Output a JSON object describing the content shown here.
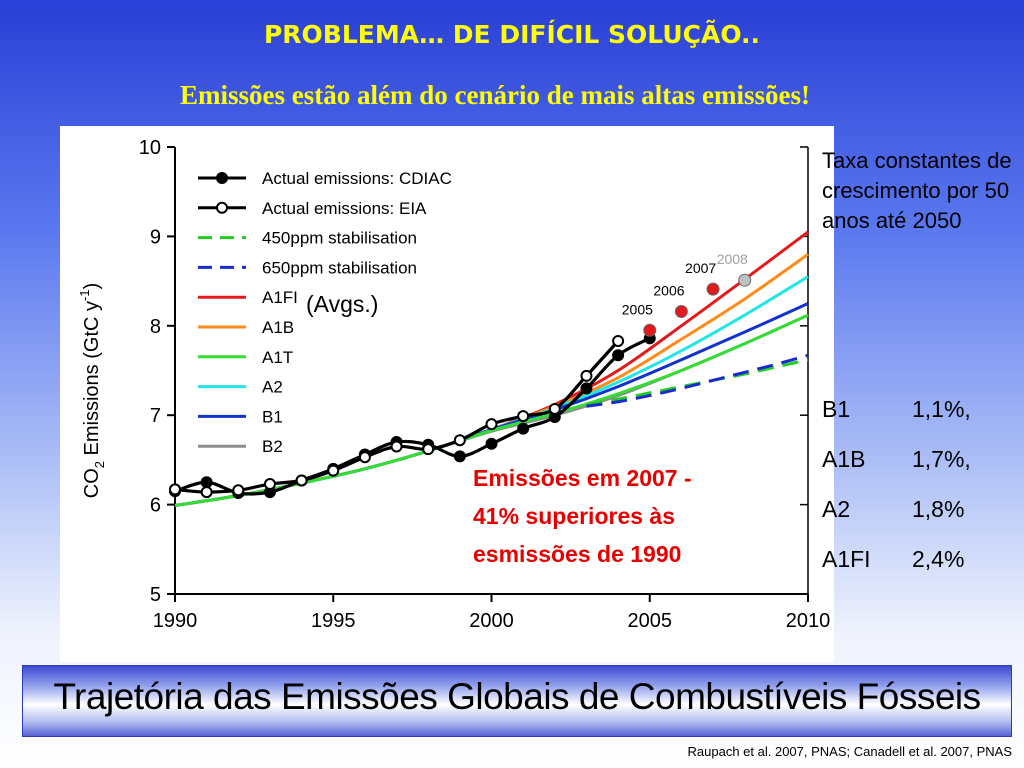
{
  "slide": {
    "title": "PROBLEMA… DE DIFÍCIL SOLUÇÃO..",
    "subtitle": "Emissões estão além do cenário de mais altas emissões!",
    "side_note": "Taxa constantes de crescimento por 50 anos até 2050",
    "rates": [
      {
        "name": "B1",
        "value": "1,1%,"
      },
      {
        "name": "A1B",
        "value": "1,7%,"
      },
      {
        "name": "A2",
        "value": "1,8%"
      },
      {
        "name": "A1FI",
        "value": "2,4%"
      }
    ],
    "banner": "Trajetória das Emissões Globais de Combustíveis Fósseis",
    "source": "Raupach et al. 2007, PNAS; Canadell et al. 2007, PNAS"
  },
  "chart_data": {
    "type": "line",
    "xlim": [
      1990,
      2010
    ],
    "ylim": [
      5,
      10
    ],
    "x_ticks": [
      "1990",
      "1995",
      "2000",
      "2005",
      "2010"
    ],
    "y_ticks": [
      "5",
      "6",
      "7",
      "8",
      "9",
      "10"
    ],
    "ylabel": "CO2 Emissions (GtC y-1)",
    "legend_placement": "top-left",
    "legend_note": "(Avgs.)",
    "annotation": "Emissões em 2007 - 41% superiores às esmissões de 1990",
    "annotation_color": "#e60000",
    "series": [
      {
        "name": "Actual emissions: CDIAC",
        "style": "solid-filled-markers",
        "color": "#000000",
        "x": [
          1990,
          1991,
          1992,
          1993,
          1994,
          1995,
          1996,
          1997,
          1998,
          1999,
          2000,
          2001,
          2002,
          2003,
          2004,
          2005
        ],
        "y": [
          6.15,
          6.25,
          6.13,
          6.14,
          6.27,
          6.4,
          6.56,
          6.7,
          6.67,
          6.54,
          6.68,
          6.85,
          6.98,
          7.3,
          7.67,
          7.86
        ]
      },
      {
        "name": "Actual emissions: EIA",
        "style": "solid-open-markers",
        "color": "#000000",
        "x": [
          1990,
          1991,
          1992,
          1993,
          1994,
          1995,
          1996,
          1997,
          1998,
          1999,
          2000,
          2001,
          2002,
          2003,
          2004
        ],
        "y": [
          6.17,
          6.14,
          6.16,
          6.23,
          6.27,
          6.38,
          6.53,
          6.65,
          6.62,
          6.72,
          6.9,
          6.99,
          7.07,
          7.44,
          7.83
        ]
      },
      {
        "name": "450ppm stabilisation",
        "style": "dashed",
        "color": "#22cc22",
        "x": [
          2003,
          2004,
          2005,
          2006,
          2007,
          2008,
          2009,
          2010
        ],
        "y": [
          7.12,
          7.18,
          7.25,
          7.32,
          7.39,
          7.46,
          7.54,
          7.62
        ]
      },
      {
        "name": "650ppm stabilisation",
        "style": "dashed",
        "color": "#1a2ad0",
        "x": [
          2003,
          2004,
          2005,
          2006,
          2007,
          2008,
          2009,
          2010
        ],
        "y": [
          7.1,
          7.15,
          7.22,
          7.3,
          7.39,
          7.48,
          7.57,
          7.67
        ]
      },
      {
        "name": "A1FI",
        "style": "solid",
        "color": "#e31a1c",
        "x": [
          1990,
          1992,
          1994,
          1996,
          1998,
          2000,
          2002,
          2004,
          2006,
          2008,
          2010
        ],
        "y": [
          5.99,
          6.1,
          6.24,
          6.4,
          6.6,
          6.84,
          7.12,
          7.5,
          8.0,
          8.52,
          9.05
        ]
      },
      {
        "name": "A1B",
        "style": "solid",
        "color": "#ff8c1a",
        "x": [
          1990,
          1992,
          1994,
          1996,
          1998,
          2000,
          2002,
          2004,
          2006,
          2008,
          2010
        ],
        "y": [
          5.99,
          6.1,
          6.24,
          6.4,
          6.6,
          6.84,
          7.1,
          7.42,
          7.85,
          8.3,
          8.8
        ]
      },
      {
        "name": "A1T",
        "style": "solid",
        "color": "#33dd33",
        "x": [
          1990,
          1992,
          1994,
          1996,
          1998,
          2000,
          2002,
          2004,
          2006,
          2008,
          2010
        ],
        "y": [
          5.99,
          6.1,
          6.24,
          6.4,
          6.6,
          6.83,
          7.02,
          7.24,
          7.5,
          7.8,
          8.12
        ]
      },
      {
        "name": "A2",
        "style": "solid",
        "color": "#22e6e6",
        "x": [
          1990,
          1992,
          1994,
          1996,
          1998,
          2000,
          2002,
          2004,
          2006,
          2008,
          2010
        ],
        "y": [
          5.99,
          6.1,
          6.24,
          6.4,
          6.6,
          6.84,
          7.08,
          7.37,
          7.72,
          8.12,
          8.55
        ]
      },
      {
        "name": "B1",
        "style": "solid",
        "color": "#1133cc",
        "x": [
          1990,
          1992,
          1994,
          1996,
          1998,
          2000,
          2002,
          2004,
          2006,
          2008,
          2010
        ],
        "y": [
          5.99,
          6.1,
          6.24,
          6.4,
          6.6,
          6.84,
          7.06,
          7.32,
          7.62,
          7.93,
          8.25
        ]
      },
      {
        "name": "B2",
        "style": "solid",
        "color": "#8c8c8c",
        "x": [
          1990,
          1992,
          1994,
          1996,
          1998,
          2000,
          2002,
          2004,
          2006,
          2008,
          2010
        ],
        "y": [
          5.99,
          6.1,
          6.24,
          6.4,
          6.6,
          6.82,
          7.0,
          7.22,
          7.5,
          7.8,
          8.12
        ]
      }
    ],
    "highlight_points": [
      {
        "x": 2005,
        "y": 7.95,
        "label": "2005",
        "color": "#e31a1c",
        "label_color": "#000000"
      },
      {
        "x": 2006,
        "y": 8.16,
        "label": "2006",
        "color": "#e31a1c",
        "label_color": "#000000"
      },
      {
        "x": 2007,
        "y": 8.41,
        "label": "2007",
        "color": "#e31a1c",
        "label_color": "#000000"
      },
      {
        "x": 2008,
        "y": 8.51,
        "label": "2008",
        "color": "#c0c0c0",
        "label_color": "#a0a0a0"
      }
    ]
  }
}
